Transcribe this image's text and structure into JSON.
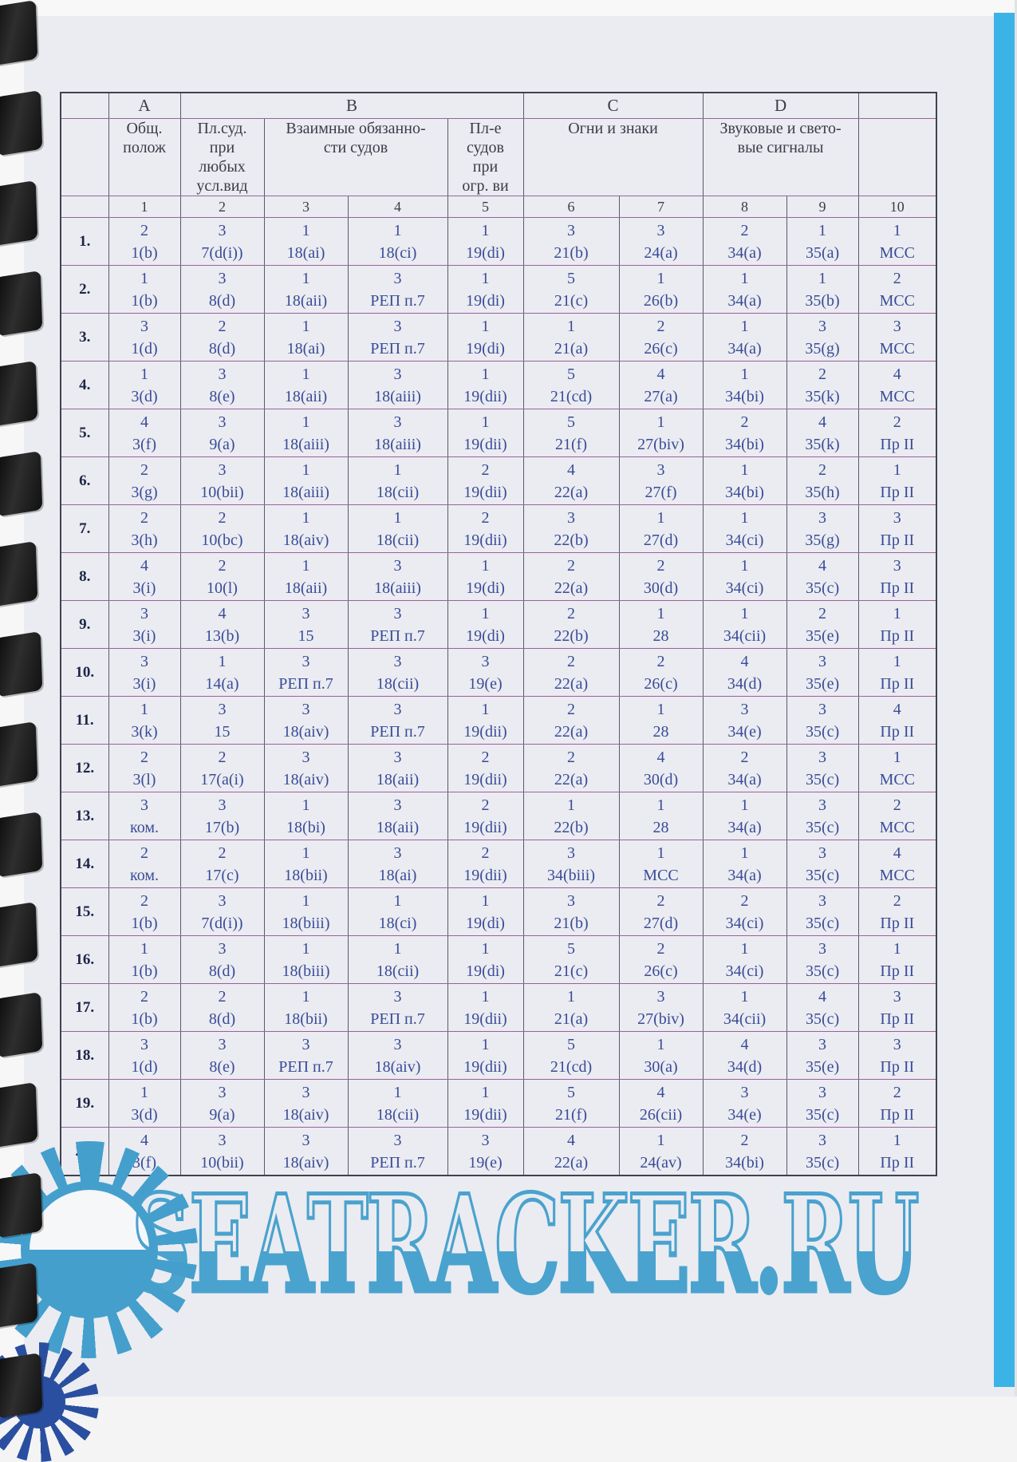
{
  "page": {
    "watermark_text": "SEATRACKER.RU",
    "colors": {
      "paper": "#eaecf1",
      "edge_stripe_cyan": "#3cb3e6",
      "watermark_blue": "#449fcd",
      "cell_text_blue": "#3b4b97",
      "border_magenta": "#9d5f9d",
      "border_gray": "#5a5b68"
    }
  },
  "table": {
    "group_headers": [
      {
        "label": "",
        "span": 1
      },
      {
        "label": "A",
        "span": 1
      },
      {
        "label": "B",
        "span": 4
      },
      {
        "label": "C",
        "span": 2
      },
      {
        "label": "D",
        "span": 2
      },
      {
        "label": "",
        "span": 1
      }
    ],
    "section_headers": [
      {
        "label": "",
        "span": 1
      },
      {
        "label": "Общ.\nполож",
        "span": 1
      },
      {
        "label": "Пл.суд.\nпри\nлюбых\nусл.вид",
        "span": 1
      },
      {
        "label": "Взаимные обязанно-\nсти судов",
        "span": 2
      },
      {
        "label": "Пл-е\nсудов\nпри\nогр. ви",
        "span": 1
      },
      {
        "label": "Огни и знаки",
        "span": 2
      },
      {
        "label": "Звуковые и свето-\nвые сигналы",
        "span": 2
      },
      {
        "label": "",
        "span": 1
      }
    ],
    "column_numbers": [
      "1",
      "2",
      "3",
      "4",
      "5",
      "6",
      "7",
      "8",
      "9",
      "10"
    ],
    "rows": [
      {
        "num": "1.",
        "cells": [
          [
            "2",
            "1(b)"
          ],
          [
            "3",
            "7(d(i))"
          ],
          [
            "1",
            "18(ai)"
          ],
          [
            "1",
            "18(ci)"
          ],
          [
            "1",
            "19(di)"
          ],
          [
            "3",
            "21(b)"
          ],
          [
            "3",
            "24(a)"
          ],
          [
            "2",
            "34(a)"
          ],
          [
            "1",
            "35(a)"
          ],
          [
            "1",
            "МСС"
          ]
        ]
      },
      {
        "num": "2.",
        "cells": [
          [
            "1",
            "1(b)"
          ],
          [
            "3",
            "8(d)"
          ],
          [
            "1",
            "18(aii)"
          ],
          [
            "3",
            "РЕП п.7"
          ],
          [
            "1",
            "19(di)"
          ],
          [
            "5",
            "21(c)"
          ],
          [
            "1",
            "26(b)"
          ],
          [
            "1",
            "34(a)"
          ],
          [
            "1",
            "35(b)"
          ],
          [
            "2",
            "МСС"
          ]
        ]
      },
      {
        "num": "3.",
        "cells": [
          [
            "3",
            "1(d)"
          ],
          [
            "2",
            "8(d)"
          ],
          [
            "1",
            "18(ai)"
          ],
          [
            "3",
            "РЕП п.7"
          ],
          [
            "1",
            "19(di)"
          ],
          [
            "1",
            "21(a)"
          ],
          [
            "2",
            "26(c)"
          ],
          [
            "1",
            "34(a)"
          ],
          [
            "3",
            "35(g)"
          ],
          [
            "3",
            "МСС"
          ]
        ]
      },
      {
        "num": "4.",
        "cells": [
          [
            "1",
            "3(d)"
          ],
          [
            "3",
            "8(e)"
          ],
          [
            "1",
            "18(aii)"
          ],
          [
            "3",
            "18(aiii)"
          ],
          [
            "1",
            "19(dii)"
          ],
          [
            "5",
            "21(cd)"
          ],
          [
            "4",
            "27(a)"
          ],
          [
            "1",
            "34(bi)"
          ],
          [
            "2",
            "35(k)"
          ],
          [
            "4",
            "МСС"
          ]
        ]
      },
      {
        "num": "5.",
        "cells": [
          [
            "4",
            "3(f)"
          ],
          [
            "3",
            "9(a)"
          ],
          [
            "1",
            "18(aiii)"
          ],
          [
            "3",
            "18(aiii)"
          ],
          [
            "1",
            "19(dii)"
          ],
          [
            "5",
            "21(f)"
          ],
          [
            "1",
            "27(biv)"
          ],
          [
            "2",
            "34(bi)"
          ],
          [
            "4",
            "35(k)"
          ],
          [
            "2",
            "Пр II"
          ]
        ]
      },
      {
        "num": "6.",
        "cells": [
          [
            "2",
            "3(g)"
          ],
          [
            "3",
            "10(bii)"
          ],
          [
            "1",
            "18(aiii)"
          ],
          [
            "1",
            "18(cii)"
          ],
          [
            "2",
            "19(dii)"
          ],
          [
            "4",
            "22(a)"
          ],
          [
            "3",
            "27(f)"
          ],
          [
            "1",
            "34(bi)"
          ],
          [
            "2",
            "35(h)"
          ],
          [
            "1",
            "Пр II"
          ]
        ]
      },
      {
        "num": "7.",
        "cells": [
          [
            "2",
            "3(h)"
          ],
          [
            "2",
            "10(bc)"
          ],
          [
            "1",
            "18(aiv)"
          ],
          [
            "1",
            "18(cii)"
          ],
          [
            "2",
            "19(dii)"
          ],
          [
            "3",
            "22(b)"
          ],
          [
            "1",
            "27(d)"
          ],
          [
            "1",
            "34(ci)"
          ],
          [
            "3",
            "35(g)"
          ],
          [
            "3",
            "Пр II"
          ]
        ]
      },
      {
        "num": "8.",
        "cells": [
          [
            "4",
            "3(i)"
          ],
          [
            "2",
            "10(l)"
          ],
          [
            "1",
            "18(aii)"
          ],
          [
            "3",
            "18(aiii)"
          ],
          [
            "1",
            "19(di)"
          ],
          [
            "2",
            "22(a)"
          ],
          [
            "2",
            "30(d)"
          ],
          [
            "1",
            "34(ci)"
          ],
          [
            "4",
            "35(c)"
          ],
          [
            "3",
            "Пр II"
          ]
        ]
      },
      {
        "num": "9.",
        "cells": [
          [
            "3",
            "3(i)"
          ],
          [
            "4",
            "13(b)"
          ],
          [
            "3",
            "15"
          ],
          [
            "3",
            "РЕП п.7"
          ],
          [
            "1",
            "19(di)"
          ],
          [
            "2",
            "22(b)"
          ],
          [
            "1",
            "28"
          ],
          [
            "1",
            "34(cii)"
          ],
          [
            "2",
            "35(e)"
          ],
          [
            "1",
            "Пр II"
          ]
        ]
      },
      {
        "num": "10.",
        "cells": [
          [
            "3",
            "3(i)"
          ],
          [
            "1",
            "14(a)"
          ],
          [
            "3",
            "РЕП п.7"
          ],
          [
            "3",
            "18(cii)"
          ],
          [
            "3",
            "19(e)"
          ],
          [
            "2",
            "22(a)"
          ],
          [
            "2",
            "26(c)"
          ],
          [
            "4",
            "34(d)"
          ],
          [
            "3",
            "35(e)"
          ],
          [
            "1",
            "Пр II"
          ]
        ]
      },
      {
        "num": "11.",
        "cells": [
          [
            "1",
            "3(k)"
          ],
          [
            "3",
            "15"
          ],
          [
            "3",
            "18(aiv)"
          ],
          [
            "3",
            "РЕП п.7"
          ],
          [
            "1",
            "19(dii)"
          ],
          [
            "2",
            "22(a)"
          ],
          [
            "1",
            "28"
          ],
          [
            "3",
            "34(e)"
          ],
          [
            "3",
            "35(c)"
          ],
          [
            "4",
            "Пр II"
          ]
        ]
      },
      {
        "num": "12.",
        "cells": [
          [
            "2",
            "3(l)"
          ],
          [
            "2",
            "17(a(i)"
          ],
          [
            "3",
            "18(aiv)"
          ],
          [
            "3",
            "18(aii)"
          ],
          [
            "2",
            "19(dii)"
          ],
          [
            "2",
            "22(a)"
          ],
          [
            "4",
            "30(d)"
          ],
          [
            "2",
            "34(a)"
          ],
          [
            "3",
            "35(c)"
          ],
          [
            "1",
            "МСС"
          ]
        ]
      },
      {
        "num": "13.",
        "cells": [
          [
            "3",
            "ком."
          ],
          [
            "3",
            "17(b)"
          ],
          [
            "1",
            "18(bi)"
          ],
          [
            "3",
            "18(aii)"
          ],
          [
            "2",
            "19(dii)"
          ],
          [
            "1",
            "22(b)"
          ],
          [
            "1",
            "28"
          ],
          [
            "1",
            "34(a)"
          ],
          [
            "3",
            "35(c)"
          ],
          [
            "2",
            "МСС"
          ]
        ]
      },
      {
        "num": "14.",
        "cells": [
          [
            "2",
            "ком."
          ],
          [
            "2",
            "17(c)"
          ],
          [
            "1",
            "18(bii)"
          ],
          [
            "3",
            "18(ai)"
          ],
          [
            "2",
            "19(dii)"
          ],
          [
            "3",
            "34(biii)"
          ],
          [
            "1",
            "МСС"
          ],
          [
            "1",
            "34(a)"
          ],
          [
            "3",
            "35(c)"
          ],
          [
            "4",
            "МСС"
          ]
        ]
      },
      {
        "num": "15.",
        "cells": [
          [
            "2",
            "1(b)"
          ],
          [
            "3",
            "7(d(i))"
          ],
          [
            "1",
            "18(biii)"
          ],
          [
            "1",
            "18(ci)"
          ],
          [
            "1",
            "19(di)"
          ],
          [
            "3",
            "21(b)"
          ],
          [
            "2",
            "27(d)"
          ],
          [
            "2",
            "34(ci)"
          ],
          [
            "3",
            "35(c)"
          ],
          [
            "2",
            "Пр II"
          ]
        ]
      },
      {
        "num": "16.",
        "cells": [
          [
            "1",
            "1(b)"
          ],
          [
            "3",
            "8(d)"
          ],
          [
            "1",
            "18(biii)"
          ],
          [
            "1",
            "18(cii)"
          ],
          [
            "1",
            "19(di)"
          ],
          [
            "5",
            "21(c)"
          ],
          [
            "2",
            "26(c)"
          ],
          [
            "1",
            "34(ci)"
          ],
          [
            "3",
            "35(c)"
          ],
          [
            "1",
            "Пр II"
          ]
        ]
      },
      {
        "num": "17.",
        "cells": [
          [
            "2",
            "1(b)"
          ],
          [
            "2",
            "8(d)"
          ],
          [
            "1",
            "18(bii)"
          ],
          [
            "3",
            "РЕП п.7"
          ],
          [
            "1",
            "19(dii)"
          ],
          [
            "1",
            "21(a)"
          ],
          [
            "3",
            "27(biv)"
          ],
          [
            "1",
            "34(cii)"
          ],
          [
            "4",
            "35(c)"
          ],
          [
            "3",
            "Пр II"
          ]
        ]
      },
      {
        "num": "18.",
        "cells": [
          [
            "3",
            "1(d)"
          ],
          [
            "3",
            "8(e)"
          ],
          [
            "3",
            "РЕП п.7"
          ],
          [
            "3",
            "18(aiv)"
          ],
          [
            "1",
            "19(dii)"
          ],
          [
            "5",
            "21(cd)"
          ],
          [
            "1",
            "30(a)"
          ],
          [
            "4",
            "34(d)"
          ],
          [
            "3",
            "35(e)"
          ],
          [
            "3",
            "Пр II"
          ]
        ]
      },
      {
        "num": "19.",
        "cells": [
          [
            "1",
            "3(d)"
          ],
          [
            "3",
            "9(a)"
          ],
          [
            "3",
            "18(aiv)"
          ],
          [
            "1",
            "18(cii)"
          ],
          [
            "1",
            "19(dii)"
          ],
          [
            "5",
            "21(f)"
          ],
          [
            "4",
            "26(cii)"
          ],
          [
            "3",
            "34(e)"
          ],
          [
            "3",
            "35(c)"
          ],
          [
            "2",
            "Пр II"
          ]
        ]
      },
      {
        "num": "20.",
        "cells": [
          [
            "4",
            "3(f)"
          ],
          [
            "3",
            "10(bii)"
          ],
          [
            "3",
            "18(aiv)"
          ],
          [
            "3",
            "РЕП п.7"
          ],
          [
            "3",
            "19(e)"
          ],
          [
            "4",
            "22(a)"
          ],
          [
            "1",
            "24(av)"
          ],
          [
            "2",
            "34(bi)"
          ],
          [
            "3",
            "35(c)"
          ],
          [
            "1",
            "Пр II"
          ]
        ]
      }
    ]
  }
}
